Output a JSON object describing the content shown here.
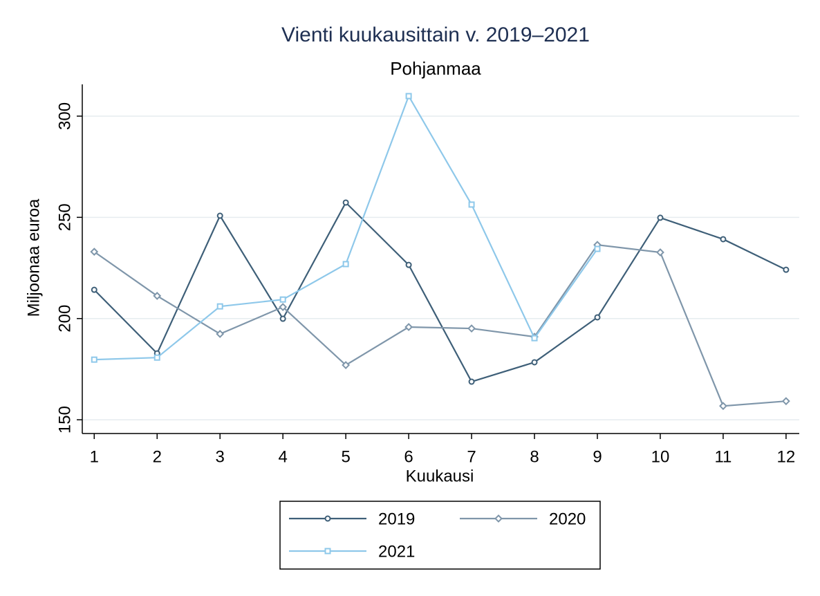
{
  "chart_data": {
    "type": "line",
    "title": "Vienti kuukausittain v. 2019–2021",
    "subtitle": "Pohjanmaa",
    "x_label": "Kuukausi",
    "y_label": "Miljoonaa euroa",
    "x": [
      1,
      2,
      3,
      4,
      5,
      6,
      7,
      8,
      9,
      10,
      11,
      12
    ],
    "series": [
      {
        "name": "2019",
        "color": "#3e5f78",
        "marker": "circle",
        "values": [
          214.2,
          182.8,
          250.8,
          199.9,
          257.3,
          226.5,
          168.8,
          178.4,
          200.6,
          249.8,
          239.2,
          224.1
        ]
      },
      {
        "name": "2020",
        "color": "#7f96aa",
        "marker": "diamond",
        "values": [
          233.0,
          211.2,
          192.4,
          205.7,
          177.0,
          195.8,
          195.1,
          191.0,
          236.4,
          232.7,
          156.8,
          159.2
        ]
      },
      {
        "name": "2021",
        "color": "#8ec8ea",
        "marker": "square",
        "values": [
          179.7,
          180.7,
          206.0,
          209.4,
          226.9,
          309.9,
          256.3,
          190.3,
          234.4,
          null,
          null,
          null
        ]
      }
    ],
    "xlim": [
      0.81,
      12.21
    ],
    "xticks": [
      1,
      2,
      3,
      4,
      5,
      6,
      7,
      8,
      9,
      10,
      11,
      12
    ],
    "ylim": [
      143.2,
      315.7
    ],
    "yticks": [
      150,
      200,
      250,
      300
    ],
    "grid": true
  }
}
